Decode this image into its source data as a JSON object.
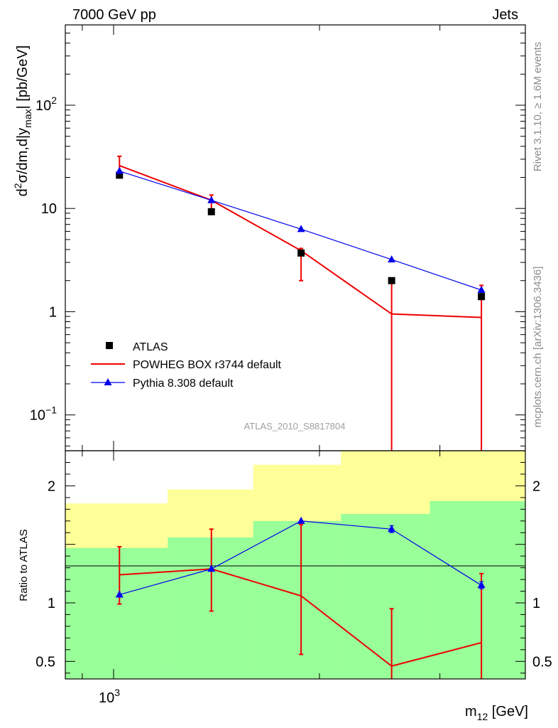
{
  "chart_data": [
    {
      "type": "line",
      "title_left": "7000 GeV pp",
      "title_right": "Jets",
      "ylabel": "d²σ/dm,d|y_max| [pb/GeV]",
      "yscale": "log",
      "ylim": [
        0.045,
        600
      ],
      "yticks": [
        {
          "value": 0.1,
          "base": "10",
          "exp": "−1"
        },
        {
          "value": 1,
          "base": "1",
          "exp": ""
        },
        {
          "value": 10,
          "base": "10",
          "exp": ""
        },
        {
          "value": 100,
          "base": "10",
          "exp": "2"
        }
      ],
      "annotation": "ATLAS_2010_S8817804",
      "legend_position": "bottom-left",
      "series": [
        {
          "name": "ATLAS",
          "marker": "square",
          "color": "#000000",
          "x": [
            1020,
            1390,
            1880,
            2550,
            3450
          ],
          "y": [
            21,
            9.3,
            3.7,
            2.0,
            1.4
          ]
        },
        {
          "name": "POWHEG BOX r3744 default",
          "marker": "none",
          "color": "#ee0000",
          "x": [
            1020,
            1390,
            1880,
            2550,
            3450
          ],
          "y": [
            26,
            12,
            3.9,
            0.95,
            0.88
          ],
          "err_low": [
            21,
            9.4,
            2.0,
            0.001,
            0.001
          ],
          "err_high": [
            32,
            13.5,
            4.1,
            2.0,
            1.8
          ]
        },
        {
          "name": "Pythia 8.308 default",
          "marker": "triangle",
          "color": "#0000ee",
          "x": [
            1020,
            1390,
            1880,
            2550,
            3450
          ],
          "y": [
            23,
            12,
            6.3,
            3.2,
            1.62
          ]
        }
      ]
    },
    {
      "type": "line",
      "xlabel": "m₁₂ [GeV]",
      "ylabel": "Ratio to ATLAS",
      "ylim": [
        0.35,
        2.3
      ],
      "yticks": [
        0.5,
        1,
        2
      ],
      "xticks": [
        {
          "value": 1000,
          "base": "10",
          "exp": "3"
        }
      ],
      "x_edges": [
        850,
        1200,
        1600,
        2150,
        2900,
        4000
      ],
      "bands": {
        "yellow": {
          "color": "#ffff99",
          "low": [
            0.6,
            0.52,
            0.35,
            0.35,
            0.35
          ],
          "high": [
            1.85,
            1.97,
            2.18,
            2.3,
            2.3
          ]
        },
        "green": {
          "color": "#99ff99",
          "low": [
            0.35,
            0.35,
            0.35,
            0.35,
            0.35
          ],
          "high": [
            1.47,
            1.56,
            1.7,
            1.76,
            1.87
          ]
        }
      },
      "series": [
        {
          "name": "POWHEG BOX r3744 default",
          "color": "#ee0000",
          "x": [
            1020,
            1390,
            1880,
            2550,
            3450
          ],
          "y": [
            1.24,
            1.29,
            1.06,
            0.46,
            0.66
          ],
          "err_low": [
            0.99,
            0.93,
            0.56,
            0.3,
            0.3
          ],
          "err_high": [
            1.48,
            1.63,
            1.67,
            0.95,
            1.25
          ]
        },
        {
          "name": "Pythia 8.308 default",
          "color": "#0000ee",
          "x": [
            1020,
            1390,
            1880,
            2550,
            3450
          ],
          "y": [
            1.07,
            1.29,
            1.7,
            1.63,
            1.15
          ],
          "err_low": [
            1.07,
            1.29,
            1.7,
            1.6,
            1.12
          ],
          "err_high": [
            1.07,
            1.29,
            1.7,
            1.66,
            1.18
          ]
        }
      ]
    }
  ],
  "side_text": {
    "rivet": "Rivet 3.1.10, ≥ 1.6M events",
    "mcplots": "mcplots.cern.ch [arXiv:1306.3436]"
  }
}
